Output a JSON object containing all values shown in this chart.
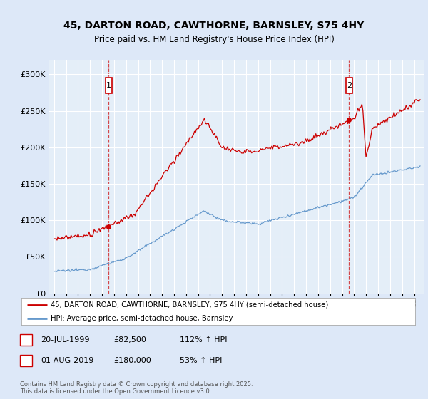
{
  "title": "45, DARTON ROAD, CAWTHORNE, BARNSLEY, S75 4HY",
  "subtitle": "Price paid vs. HM Land Registry's House Price Index (HPI)",
  "legend_line1": "45, DARTON ROAD, CAWTHORNE, BARNSLEY, S75 4HY (semi-detached house)",
  "legend_line2": "HPI: Average price, semi-detached house, Barnsley",
  "transaction1_date": "20-JUL-1999",
  "transaction1_price": "£82,500",
  "transaction1_hpi": "112% ↑ HPI",
  "transaction2_date": "01-AUG-2019",
  "transaction2_price": "£180,000",
  "transaction2_hpi": "53% ↑ HPI",
  "footnote": "Contains HM Land Registry data © Crown copyright and database right 2025.\nThis data is licensed under the Open Government Licence v3.0.",
  "red_color": "#cc0000",
  "blue_color": "#6699cc",
  "background_color": "#dde8f8",
  "plot_bg_color": "#e4eef8",
  "ylim": [
    0,
    320000
  ],
  "yticks": [
    0,
    50000,
    100000,
    150000,
    200000,
    250000,
    300000
  ],
  "ytick_labels": [
    "£0",
    "£50K",
    "£100K",
    "£150K",
    "£200K",
    "£250K",
    "£300K"
  ],
  "transaction1_year": 1999.55,
  "transaction2_year": 2019.58
}
